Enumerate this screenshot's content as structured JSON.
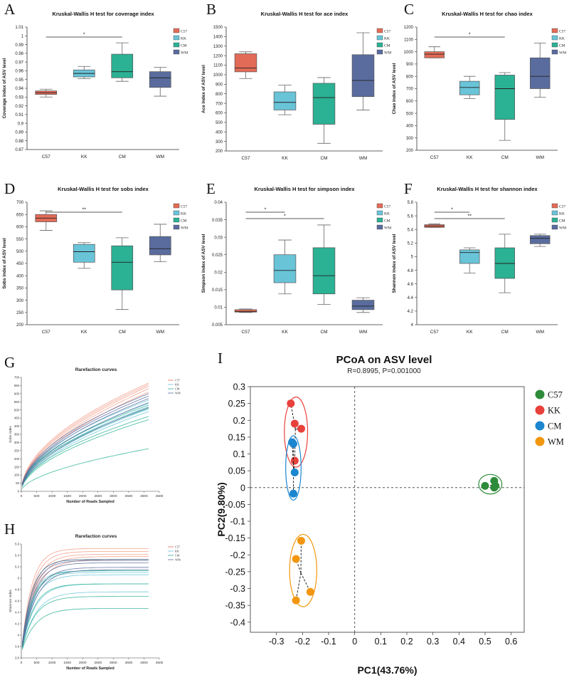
{
  "colors": {
    "C57": "#e26b57",
    "KK": "#69c4d8",
    "CM": "#2bb194",
    "WM": "#5a6c9e"
  },
  "groups": [
    "C57",
    "KK",
    "CM",
    "WM"
  ],
  "panels": [
    {
      "letter": "A",
      "title": "Kruskal-Wallis H test for coverage index",
      "ylabel": "Coverage index of ASV level",
      "ticks": [
        "0.87",
        "0.88",
        "0.89",
        "0.9",
        "0.91",
        "0.92",
        "0.93",
        "0.94",
        "0.95",
        "0.96",
        "0.97",
        "0.98",
        "0.99",
        "1",
        "1.01"
      ],
      "boxes": [
        {
          "group": "C57",
          "min": 0.93,
          "q1": 0.933,
          "med": 0.935,
          "q3": 0.937,
          "max": 0.939
        },
        {
          "group": "KK",
          "min": 0.951,
          "q1": 0.953,
          "med": 0.957,
          "q3": 0.961,
          "max": 0.965
        },
        {
          "group": "CM",
          "min": 0.948,
          "q1": 0.952,
          "med": 0.959,
          "q3": 0.979,
          "max": 0.992
        },
        {
          "group": "WM",
          "min": 0.931,
          "q1": 0.941,
          "med": 0.952,
          "q3": 0.959,
          "max": 0.964
        }
      ],
      "sig": [
        {
          "from": 0,
          "to": 2,
          "label": "*"
        }
      ]
    },
    {
      "letter": "B",
      "title": "Kruskal-Wallis H test for ace index",
      "ylabel": "Ace index of ASV level",
      "ticks": [
        "200",
        "300",
        "400",
        "500",
        "600",
        "700",
        "800",
        "900",
        "1000",
        "1100",
        "1200",
        "1300",
        "1400",
        "1500"
      ],
      "boxes": [
        {
          "group": "C57",
          "min": 960,
          "q1": 1030,
          "med": 1070,
          "q3": 1220,
          "max": 1240
        },
        {
          "group": "KK",
          "min": 580,
          "q1": 630,
          "med": 710,
          "q3": 820,
          "max": 890
        },
        {
          "group": "CM",
          "min": 280,
          "q1": 480,
          "med": 760,
          "q3": 910,
          "max": 970
        },
        {
          "group": "WM",
          "min": 630,
          "q1": 770,
          "med": 940,
          "q3": 1210,
          "max": 1440
        }
      ],
      "sig": []
    },
    {
      "letter": "C",
      "title": "Kruskal-Wallis H test for chao index",
      "ylabel": "Chao index of ASV level",
      "ticks": [
        "200",
        "300",
        "400",
        "500",
        "600",
        "700",
        "800",
        "900",
        "1000",
        "1100",
        "1200"
      ],
      "boxes": [
        {
          "group": "C57",
          "min": 950,
          "q1": 950,
          "med": 980,
          "q3": 1000,
          "max": 1040
        },
        {
          "group": "KK",
          "min": 620,
          "q1": 650,
          "med": 710,
          "q3": 760,
          "max": 800
        },
        {
          "group": "CM",
          "min": 280,
          "q1": 450,
          "med": 700,
          "q3": 810,
          "max": 830
        },
        {
          "group": "WM",
          "min": 630,
          "q1": 700,
          "med": 800,
          "q3": 950,
          "max": 1070
        }
      ],
      "sig": [
        {
          "from": 0,
          "to": 2,
          "label": "*"
        }
      ]
    },
    {
      "letter": "D",
      "title": "Kruskal-Wallis H test for sobs index",
      "ylabel": "Sobs index of ASV level",
      "ticks": [
        "200",
        "250",
        "300",
        "350",
        "400",
        "450",
        "500",
        "550",
        "600",
        "650",
        "700"
      ],
      "boxes": [
        {
          "group": "C57",
          "min": 585,
          "q1": 620,
          "med": 635,
          "q3": 650,
          "max": 665
        },
        {
          "group": "KK",
          "min": 430,
          "q1": 455,
          "med": 498,
          "q3": 528,
          "max": 535
        },
        {
          "group": "CM",
          "min": 262,
          "q1": 342,
          "med": 455,
          "q3": 522,
          "max": 555
        },
        {
          "group": "WM",
          "min": 457,
          "q1": 485,
          "med": 510,
          "q3": 560,
          "max": 610
        }
      ],
      "sig": [
        {
          "from": 0,
          "to": 2,
          "label": "**"
        }
      ]
    },
    {
      "letter": "E",
      "title": "Kruskal-Wallis H test for simpson index",
      "ylabel": "Simpson index of ASV level",
      "ticks": [
        "0.005",
        "0.01",
        "0.015",
        "0.02",
        "0.025",
        "0.03",
        "0.035",
        "0.04"
      ],
      "boxes": [
        {
          "group": "C57",
          "min": 0.0085,
          "q1": 0.0086,
          "med": 0.0088,
          "q3": 0.0093,
          "max": 0.0095
        },
        {
          "group": "KK",
          "min": 0.0138,
          "q1": 0.017,
          "med": 0.0205,
          "q3": 0.025,
          "max": 0.0292
        },
        {
          "group": "CM",
          "min": 0.0108,
          "q1": 0.0138,
          "med": 0.019,
          "q3": 0.027,
          "max": 0.0335
        },
        {
          "group": "WM",
          "min": 0.0085,
          "q1": 0.0093,
          "med": 0.0103,
          "q3": 0.012,
          "max": 0.0127
        }
      ],
      "sig": [
        {
          "from": 0,
          "to": 1,
          "label": "*"
        },
        {
          "from": 0,
          "to": 2,
          "label": "*"
        }
      ]
    },
    {
      "letter": "F",
      "title": "Kruskal-Wallis H test for shannon index",
      "ylabel": "Shannon index of ASV level",
      "ticks": [
        "4",
        "4.2",
        "4.4",
        "4.6",
        "4.8",
        "5",
        "5.2",
        "5.4",
        "5.6",
        "5.8"
      ],
      "boxes": [
        {
          "group": "C57",
          "min": 5.43,
          "q1": 5.43,
          "med": 5.45,
          "q3": 5.47,
          "max": 5.48
        },
        {
          "group": "KK",
          "min": 4.76,
          "q1": 4.9,
          "med": 5.06,
          "q3": 5.1,
          "max": 5.13
        },
        {
          "group": "CM",
          "min": 4.47,
          "q1": 4.68,
          "med": 4.9,
          "q3": 5.13,
          "max": 5.33
        },
        {
          "group": "WM",
          "min": 5.15,
          "q1": 5.19,
          "med": 5.27,
          "q3": 5.31,
          "max": 5.33
        }
      ],
      "sig": [
        {
          "from": 0,
          "to": 1,
          "label": "*"
        },
        {
          "from": 0,
          "to": 2,
          "label": "**"
        }
      ]
    }
  ],
  "rarefaction": [
    {
      "letter": "G",
      "title": "Rarefaction curves",
      "ylabel": "Sobs index",
      "xlabel": "Number of Reads Sampled",
      "xticks": [
        "0",
        "500",
        "1000",
        "1500",
        "2000",
        "2500",
        "3000",
        "3500",
        "4000",
        "4500"
      ],
      "yticks": [
        "0",
        "50",
        "100",
        "150",
        "200",
        "250",
        "300",
        "350",
        "400",
        "450",
        "500",
        "550",
        "600",
        "650",
        "700"
      ],
      "kind": "sobs",
      "curves": [
        {
          "group": "C57",
          "finals": [
            665,
            655,
            645,
            630,
            610
          ]
        },
        {
          "group": "KK",
          "finals": [
            560,
            540,
            520,
            505,
            490
          ]
        },
        {
          "group": "CM",
          "finals": [
            530,
            510,
            460,
            440,
            262
          ]
        },
        {
          "group": "WM",
          "finals": [
            600,
            585,
            570,
            545,
            515
          ]
        }
      ]
    },
    {
      "letter": "H",
      "title": "Rarefaction curves",
      "ylabel": "Shannon index",
      "xlabel": "Number of Reads Sampled",
      "xticks": [
        "0",
        "500",
        "1000",
        "1500",
        "2000",
        "2500",
        "3000",
        "3500",
        "4000",
        "4500"
      ],
      "yticks": [
        "3.6",
        "3.8",
        "4",
        "4.2",
        "4.4",
        "4.6",
        "4.8",
        "5",
        "5.2",
        "5.4",
        "5.6"
      ],
      "kind": "shannon",
      "curves": [
        {
          "group": "C57",
          "finals": [
            5.52,
            5.47,
            5.42,
            5.38,
            5.33
          ]
        },
        {
          "group": "KK",
          "finals": [
            5.13,
            5.1,
            5.06,
            4.9,
            4.76
          ]
        },
        {
          "group": "CM",
          "finals": [
            5.33,
            5.13,
            4.9,
            4.68,
            4.47
          ]
        },
        {
          "group": "WM",
          "finals": [
            5.33,
            5.31,
            5.27,
            5.19,
            5.15
          ]
        }
      ]
    }
  ],
  "rare_legend": [
    "C57",
    "KK",
    "CM",
    "WM"
  ],
  "pcoa": {
    "letter": "I",
    "title": "PCoA on ASV level",
    "subtitle": "R=0.8995, P=0.001000",
    "xlabel": "PC1(43.76%)",
    "ylabel": "PC2(9.80%)",
    "xticks": [
      "-0.3",
      "-0.2",
      "-0.1",
      "0",
      "0.1",
      "0.2",
      "0.3",
      "0.4",
      "0.5",
      "0.6"
    ],
    "yticks": [
      "-0.4",
      "-0.35",
      "-0.3",
      "-0.25",
      "-0.2",
      "-0.15",
      "-0.1",
      "-0.05",
      "0",
      "0.05",
      "0.1",
      "0.15",
      "0.2",
      "0.25",
      "0.3"
    ],
    "xlim": [
      -0.4,
      0.65
    ],
    "ylim": [
      -0.43,
      0.3
    ],
    "legend": [
      {
        "label": "C57",
        "color": "#2e8b3a"
      },
      {
        "label": "KK",
        "color": "#e8413c"
      },
      {
        "label": "CM",
        "color": "#1a86d0"
      },
      {
        "label": "WM",
        "color": "#f2960f"
      }
    ],
    "points": {
      "C57": [
        [
          0.5,
          0.005
        ],
        [
          0.535,
          0.02
        ],
        [
          0.54,
          0.005
        ],
        [
          0.535,
          0.0
        ]
      ],
      "KK": [
        [
          -0.245,
          0.25
        ],
        [
          -0.23,
          0.19
        ],
        [
          -0.205,
          0.175
        ],
        [
          -0.23,
          0.08
        ]
      ],
      "CM": [
        [
          -0.24,
          0.135
        ],
        [
          -0.23,
          0.045
        ],
        [
          -0.235,
          -0.018
        ],
        [
          -0.235,
          0.13
        ]
      ],
      "WM": [
        [
          -0.205,
          -0.158
        ],
        [
          -0.225,
          -0.212
        ],
        [
          -0.17,
          -0.31
        ],
        [
          -0.225,
          -0.335
        ]
      ]
    }
  }
}
